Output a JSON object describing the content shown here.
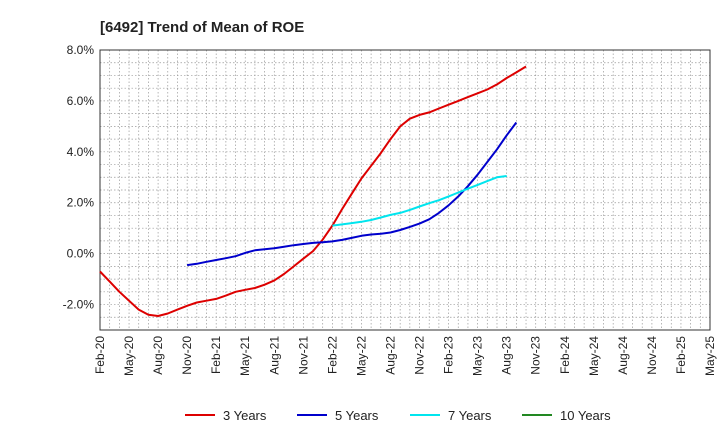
{
  "chart_data": {
    "type": "line",
    "title": "[6492]  Trend of Mean of ROE",
    "xlabel": "",
    "ylabel": "",
    "ylim": [
      -3,
      8
    ],
    "y_ticks": [
      -2,
      0,
      2,
      4,
      6,
      8
    ],
    "y_tick_labels": [
      "-2.0%",
      "0.0%",
      "2.0%",
      "4.0%",
      "6.0%",
      "8.0%"
    ],
    "x_tick_labels": [
      "Feb-20",
      "May-20",
      "Aug-20",
      "Nov-20",
      "Feb-21",
      "May-21",
      "Aug-21",
      "Nov-21",
      "Feb-22",
      "May-22",
      "Aug-22",
      "Nov-22",
      "Feb-23",
      "May-23",
      "Aug-23",
      "Nov-23",
      "Feb-24",
      "May-24",
      "Aug-24",
      "Nov-24",
      "Feb-25",
      "May-25"
    ],
    "grid": true,
    "legend_position": "bottom",
    "series": [
      {
        "name": "3 Years",
        "color": "#dd0000",
        "start_index": 0,
        "values": [
          -0.7,
          -1.1,
          -1.5,
          -1.85,
          -2.2,
          -2.4,
          -2.45,
          -2.35,
          -2.2,
          -2.05,
          -1.92,
          -1.85,
          -1.78,
          -1.65,
          -1.5,
          -1.42,
          -1.35,
          -1.22,
          -1.05,
          -0.8,
          -0.5,
          -0.2,
          0.1,
          0.55,
          1.1,
          1.75,
          2.35,
          2.95,
          3.45,
          3.95,
          4.5,
          5.0,
          5.3,
          5.45,
          5.55,
          5.7,
          5.85,
          6.0,
          6.15,
          6.3,
          6.45,
          6.65,
          6.9,
          7.12,
          7.35
        ]
      },
      {
        "name": "5 Years",
        "color": "#0000cc",
        "start_index": 9,
        "values": [
          -0.45,
          -0.4,
          -0.32,
          -0.25,
          -0.18,
          -0.1,
          0.03,
          0.13,
          0.17,
          0.21,
          0.27,
          0.33,
          0.38,
          0.42,
          0.45,
          0.48,
          0.54,
          0.62,
          0.7,
          0.75,
          0.78,
          0.83,
          0.93,
          1.05,
          1.18,
          1.35,
          1.6,
          1.9,
          2.25,
          2.65,
          3.1,
          3.6,
          4.1,
          4.65,
          5.15
        ]
      },
      {
        "name": "7 Years",
        "color": "#00e5ee",
        "start_index": 24,
        "values": [
          1.1,
          1.15,
          1.2,
          1.25,
          1.32,
          1.42,
          1.52,
          1.6,
          1.72,
          1.85,
          1.98,
          2.1,
          2.25,
          2.4,
          2.55,
          2.7,
          2.85,
          3.0,
          3.05
        ]
      },
      {
        "name": "10 Years",
        "color": "#228822",
        "start_index": 0,
        "values": []
      }
    ]
  }
}
